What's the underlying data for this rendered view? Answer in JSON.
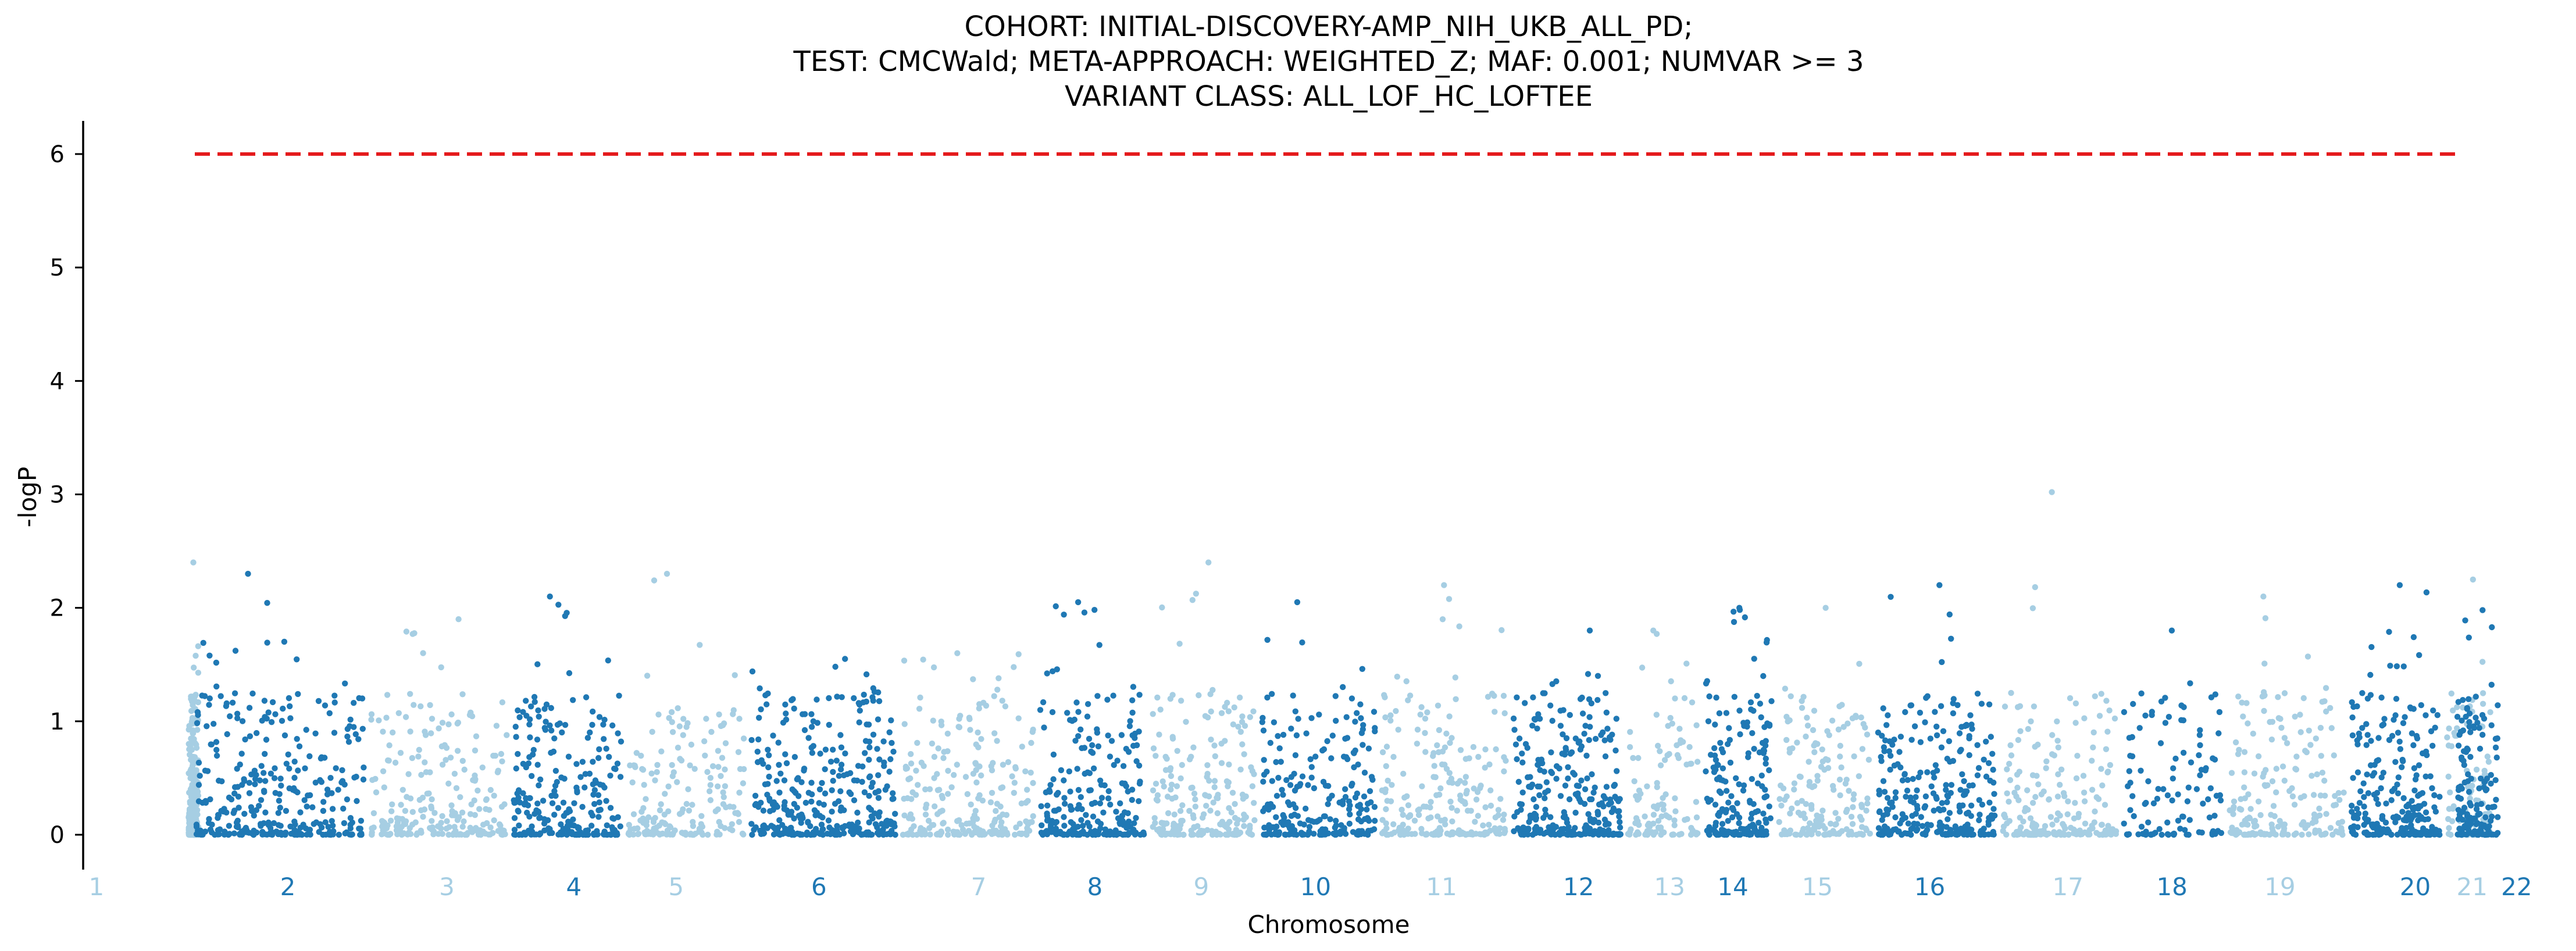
{
  "chart_data": {
    "type": "scatter",
    "title": [
      "COHORT: INITIAL-DISCOVERY-AMP_NIH_UKB_ALL_PD;",
      "TEST: CMCWald; META-APPROACH: WEIGHTED_Z; MAF: 0.001; NUMVAR >= 3",
      "VARIANT CLASS: ALL_LOF_HC_LOFTEE"
    ],
    "xlabel": "Chromosome",
    "ylabel": "-logP",
    "ylim": [
      -0.25,
      6.3
    ],
    "yticks": [
      0,
      1,
      2,
      3,
      4,
      5,
      6
    ],
    "significance_line": {
      "y": 6,
      "color": "#e41a1c",
      "style": "dashed"
    },
    "colors": {
      "light": "#a6cee3",
      "dark": "#1f78b4"
    },
    "grid": false,
    "chromosomes": [
      {
        "label": "1",
        "center": 58.4,
        "points": 260,
        "dense": false,
        "max_y": 2.4
      },
      {
        "label": "2",
        "center": 174.3,
        "points": 320,
        "dense": true,
        "max_y": 2.3
      },
      {
        "label": "3",
        "center": 270.6,
        "points": 230,
        "dense": false,
        "max_y": 1.9
      },
      {
        "label": "4",
        "center": 347.5,
        "points": 240,
        "dense": true,
        "max_y": 2.1
      },
      {
        "label": "5",
        "center": 409.4,
        "points": 180,
        "dense": false,
        "max_y": 2.3
      },
      {
        "label": "6",
        "center": 495.9,
        "points": 330,
        "dense": true,
        "max_y": 1.55
      },
      {
        "label": "7",
        "center": 592.6,
        "points": 230,
        "dense": false,
        "max_y": 1.6
      },
      {
        "label": "8",
        "center": 663.0,
        "points": 230,
        "dense": true,
        "max_y": 2.05
      },
      {
        "label": "9",
        "center": 727.4,
        "points": 210,
        "dense": false,
        "max_y": 2.4
      },
      {
        "label": "10",
        "center": 796.6,
        "points": 240,
        "dense": true,
        "max_y": 2.05
      },
      {
        "label": "11",
        "center": 872.9,
        "points": 220,
        "dense": false,
        "max_y": 2.2
      },
      {
        "label": "12",
        "center": 955.9,
        "points": 280,
        "dense": true,
        "max_y": 1.8
      },
      {
        "label": "13",
        "center": 1011.0,
        "points": 110,
        "dense": false,
        "max_y": 1.8
      },
      {
        "label": "14",
        "center": 1049.3,
        "points": 180,
        "dense": true,
        "max_y": 2.0
      },
      {
        "label": "15",
        "center": 1100.5,
        "points": 170,
        "dense": false,
        "max_y": 2.0
      },
      {
        "label": "16",
        "center": 1168.5,
        "points": 270,
        "dense": true,
        "max_y": 2.2
      },
      {
        "label": "17",
        "center": 1252.2,
        "points": 200,
        "dense": false,
        "max_y": 3.02
      },
      {
        "label": "18",
        "center": 1315.2,
        "points": 110,
        "dense": true,
        "max_y": 1.8
      },
      {
        "label": "19",
        "center": 1380.6,
        "points": 200,
        "dense": false,
        "max_y": 2.1
      },
      {
        "label": "20",
        "center": 1462.5,
        "points": 250,
        "dense": true,
        "max_y": 2.2
      },
      {
        "label": "21",
        "center": 1496.9,
        "points": 90,
        "dense": false,
        "max_y": 2.25
      },
      {
        "label": "22",
        "center": 1523.9,
        "points": 150,
        "dense": true,
        "max_y": 1.98
      }
    ]
  }
}
